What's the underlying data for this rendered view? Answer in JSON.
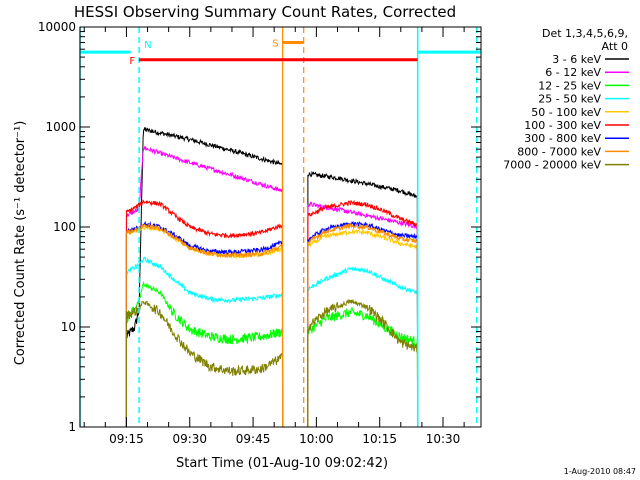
{
  "chart_data": {
    "type": "line",
    "title": "HESSI Observing Summary Count Rates, Corrected",
    "xlabel": "Start Time (01-Aug-10 09:02:42)",
    "ylabel": "Corrected Count Rate (s⁻¹ detector⁻¹)",
    "x_unit": "time",
    "xlim": [
      "09:04",
      "10:39"
    ],
    "ylim": [
      1,
      10000
    ],
    "y_scale": "log",
    "x_ticks": [
      "09:15",
      "09:30",
      "09:45",
      "10:00",
      "10:15",
      "10:30"
    ],
    "y_ticks": [
      "1",
      "10",
      "100",
      "1000",
      "10000"
    ],
    "timestamp": "1-Aug-2010 08:47",
    "legend": {
      "placement": "right",
      "header": [
        "Det 1,3,4,5,6,9,",
        "Att 0"
      ]
    },
    "annotations": {
      "night_bars": [
        {
          "from": "09:04",
          "to": "09:16",
          "level": 5600
        },
        {
          "from": "10:24",
          "to": "10:39",
          "level": 5600
        }
      ],
      "night_label": "N",
      "flare_bar": {
        "from": "09:18",
        "to": "10:24",
        "level": 4700,
        "label": "F"
      },
      "saa_bar": {
        "from": "09:52",
        "to": "09:57",
        "level": 7000,
        "label": "S"
      },
      "vlines_cyan_solid": [
        "09:04",
        "10:24"
      ],
      "vlines_cyan_dashed": [
        "09:18",
        "10:38"
      ],
      "vlines_orange_solid": [
        "09:52"
      ],
      "vlines_orange_dashed": [
        "09:57"
      ]
    },
    "segments": [
      {
        "from": "09:15",
        "to": "09:52"
      },
      {
        "from": "09:58",
        "to": "10:24"
      }
    ],
    "series": [
      {
        "name": "3 - 6 keV",
        "color": "#000000",
        "points": [
          [
            "09:15",
            8
          ],
          [
            "09:17",
            10
          ],
          [
            "09:18",
            15
          ],
          [
            "09:19",
            950
          ],
          [
            "09:30",
            750
          ],
          [
            "09:40",
            580
          ],
          [
            "09:52",
            420
          ],
          [
            "09:58",
            340
          ],
          [
            "10:05",
            310
          ],
          [
            "10:12",
            270
          ],
          [
            "10:20",
            230
          ],
          [
            "10:24",
            200
          ]
        ]
      },
      {
        "name": "6 - 12 keV",
        "color": "#ff00ff",
        "points": [
          [
            "09:15",
            130
          ],
          [
            "09:18",
            150
          ],
          [
            "09:19",
            620
          ],
          [
            "09:30",
            440
          ],
          [
            "09:40",
            330
          ],
          [
            "09:52",
            230
          ],
          [
            "09:58",
            170
          ],
          [
            "10:05",
            150
          ],
          [
            "10:12",
            130
          ],
          [
            "10:20",
            110
          ],
          [
            "10:24",
            100
          ]
        ]
      },
      {
        "name": "12 - 25 keV",
        "color": "#00ff00",
        "points": [
          [
            "09:15",
            12
          ],
          [
            "09:18",
            18
          ],
          [
            "09:19",
            27
          ],
          [
            "09:23",
            22
          ],
          [
            "09:26",
            14
          ],
          [
            "09:30",
            9.5
          ],
          [
            "09:35",
            8
          ],
          [
            "09:40",
            7.5
          ],
          [
            "09:47",
            8
          ],
          [
            "09:52",
            9
          ],
          [
            "09:58",
            9
          ],
          [
            "10:02",
            12
          ],
          [
            "10:08",
            14
          ],
          [
            "10:12",
            13
          ],
          [
            "10:16",
            10
          ],
          [
            "10:20",
            8
          ],
          [
            "10:24",
            7
          ]
        ]
      },
      {
        "name": "25 - 50 keV",
        "color": "#00ffff",
        "points": [
          [
            "09:15",
            35
          ],
          [
            "09:18",
            42
          ],
          [
            "09:19",
            48
          ],
          [
            "09:23",
            40
          ],
          [
            "09:27",
            28
          ],
          [
            "09:30",
            22
          ],
          [
            "09:35",
            19
          ],
          [
            "09:40",
            18.5
          ],
          [
            "09:47",
            19.5
          ],
          [
            "09:52",
            21
          ],
          [
            "09:58",
            24
          ],
          [
            "10:02",
            30
          ],
          [
            "10:08",
            38
          ],
          [
            "10:12",
            37
          ],
          [
            "10:16",
            30
          ],
          [
            "10:20",
            25
          ],
          [
            "10:24",
            22
          ]
        ]
      },
      {
        "name": "50 - 100 keV",
        "color": "#ffc800",
        "points": [
          [
            "09:15",
            85
          ],
          [
            "09:18",
            95
          ],
          [
            "09:19",
            100
          ],
          [
            "09:23",
            95
          ],
          [
            "09:27",
            75
          ],
          [
            "09:30",
            62
          ],
          [
            "09:35",
            54
          ],
          [
            "09:40",
            51
          ],
          [
            "09:47",
            53
          ],
          [
            "09:52",
            60
          ],
          [
            "09:58",
            65
          ],
          [
            "10:02",
            80
          ],
          [
            "10:08",
            90
          ],
          [
            "10:12",
            88
          ],
          [
            "10:16",
            78
          ],
          [
            "10:20",
            68
          ],
          [
            "10:24",
            63
          ]
        ]
      },
      {
        "name": "100 - 300 keV",
        "color": "#ff0000",
        "points": [
          [
            "09:15",
            140
          ],
          [
            "09:18",
            165
          ],
          [
            "09:19",
            180
          ],
          [
            "09:23",
            170
          ],
          [
            "09:27",
            125
          ],
          [
            "09:30",
            100
          ],
          [
            "09:35",
            85
          ],
          [
            "09:40",
            82
          ],
          [
            "09:47",
            88
          ],
          [
            "09:52",
            105
          ],
          [
            "09:58",
            130
          ],
          [
            "10:02",
            155
          ],
          [
            "10:08",
            175
          ],
          [
            "10:12",
            168
          ],
          [
            "10:16",
            145
          ],
          [
            "10:20",
            120
          ],
          [
            "10:24",
            105
          ]
        ]
      },
      {
        "name": "300 - 800 keV",
        "color": "#0000ff",
        "points": [
          [
            "09:15",
            90
          ],
          [
            "09:18",
            100
          ],
          [
            "09:19",
            108
          ],
          [
            "09:23",
            100
          ],
          [
            "09:27",
            80
          ],
          [
            "09:30",
            65
          ],
          [
            "09:35",
            57
          ],
          [
            "09:40",
            56
          ],
          [
            "09:47",
            59
          ],
          [
            "09:52",
            70
          ],
          [
            "09:58",
            75
          ],
          [
            "10:02",
            95
          ],
          [
            "10:08",
            108
          ],
          [
            "10:12",
            105
          ],
          [
            "10:16",
            92
          ],
          [
            "10:20",
            82
          ],
          [
            "10:24",
            80
          ]
        ]
      },
      {
        "name": "800 - 7000 keV",
        "color": "#ff8c00",
        "points": [
          [
            "09:15",
            88
          ],
          [
            "09:18",
            97
          ],
          [
            "09:19",
            104
          ],
          [
            "09:23",
            97
          ],
          [
            "09:27",
            76
          ],
          [
            "09:30",
            62
          ],
          [
            "09:35",
            54
          ],
          [
            "09:40",
            52
          ],
          [
            "09:47",
            54
          ],
          [
            "09:52",
            64
          ],
          [
            "09:58",
            70
          ],
          [
            "10:02",
            90
          ],
          [
            "10:08",
            103
          ],
          [
            "10:12",
            100
          ],
          [
            "10:16",
            87
          ],
          [
            "10:20",
            76
          ],
          [
            "10:24",
            72
          ]
        ]
      },
      {
        "name": "7000 - 20000 keV",
        "color": "#808000",
        "points": [
          [
            "09:15",
            13
          ],
          [
            "09:18",
            15
          ],
          [
            "09:19",
            18
          ],
          [
            "09:23",
            14
          ],
          [
            "09:26",
            9
          ],
          [
            "09:30",
            5.5
          ],
          [
            "09:35",
            4
          ],
          [
            "09:40",
            3.6
          ],
          [
            "09:47",
            3.8
          ],
          [
            "09:52",
            5
          ],
          [
            "09:58",
            10
          ],
          [
            "10:02",
            14
          ],
          [
            "10:08",
            18
          ],
          [
            "10:12",
            16
          ],
          [
            "10:16",
            11
          ],
          [
            "10:20",
            7
          ],
          [
            "10:24",
            6
          ]
        ]
      }
    ]
  }
}
